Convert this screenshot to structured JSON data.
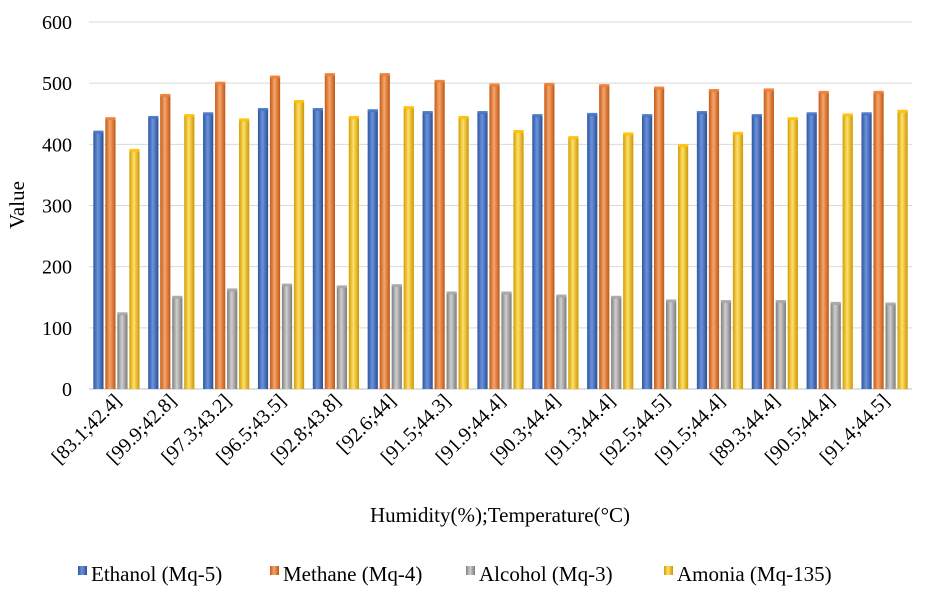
{
  "chart_data": {
    "type": "bar",
    "xlabel": "Humidity(%);Temperature(°C)",
    "ylabel": "Value",
    "ylim": [
      0,
      600
    ],
    "yticks": [
      0,
      100,
      200,
      300,
      400,
      500,
      600
    ],
    "grid": true,
    "legend_position": "bottom",
    "categories": [
      "[83.1;42.4]",
      "[99.9;42.8]",
      "[97.3;43.2]",
      "[96.5;43.5]",
      "[92.8;43.8]",
      "[92.6;44]",
      "[91.5;44.3]",
      "[91.9;44.4]",
      "[90.3;44.4]",
      "[91.3;44.4]",
      "[92.5;44.5]",
      "[91.5;44.4]",
      "[89.3;44.4]",
      "[90.5;44.4]",
      "[91.4;44.5]"
    ],
    "series": [
      {
        "name": "Ethanol (Mq-5)",
        "color": "#4472C4",
        "values": [
          420,
          444,
          450,
          457,
          457,
          455,
          452,
          452,
          447,
          449,
          447,
          452,
          447,
          450,
          450
        ]
      },
      {
        "name": "Methane (Mq-4)",
        "color": "#ED7D31",
        "values": [
          442,
          480,
          500,
          510,
          514,
          514,
          503,
          497,
          498,
          496,
          492,
          488,
          489,
          485,
          485
        ]
      },
      {
        "name": "Alcohol (Mq-3)",
        "color": "#A5A5A5",
        "values": [
          123,
          150,
          162,
          170,
          167,
          169,
          157,
          157,
          152,
          150,
          144,
          143,
          143,
          140,
          139
        ]
      },
      {
        "name": "Amonia (Mq-135)",
        "color": "#FFC000",
        "values": [
          390,
          447,
          440,
          470,
          444,
          460,
          444,
          421,
          411,
          417,
          398,
          418,
          442,
          448,
          454
        ]
      }
    ]
  }
}
